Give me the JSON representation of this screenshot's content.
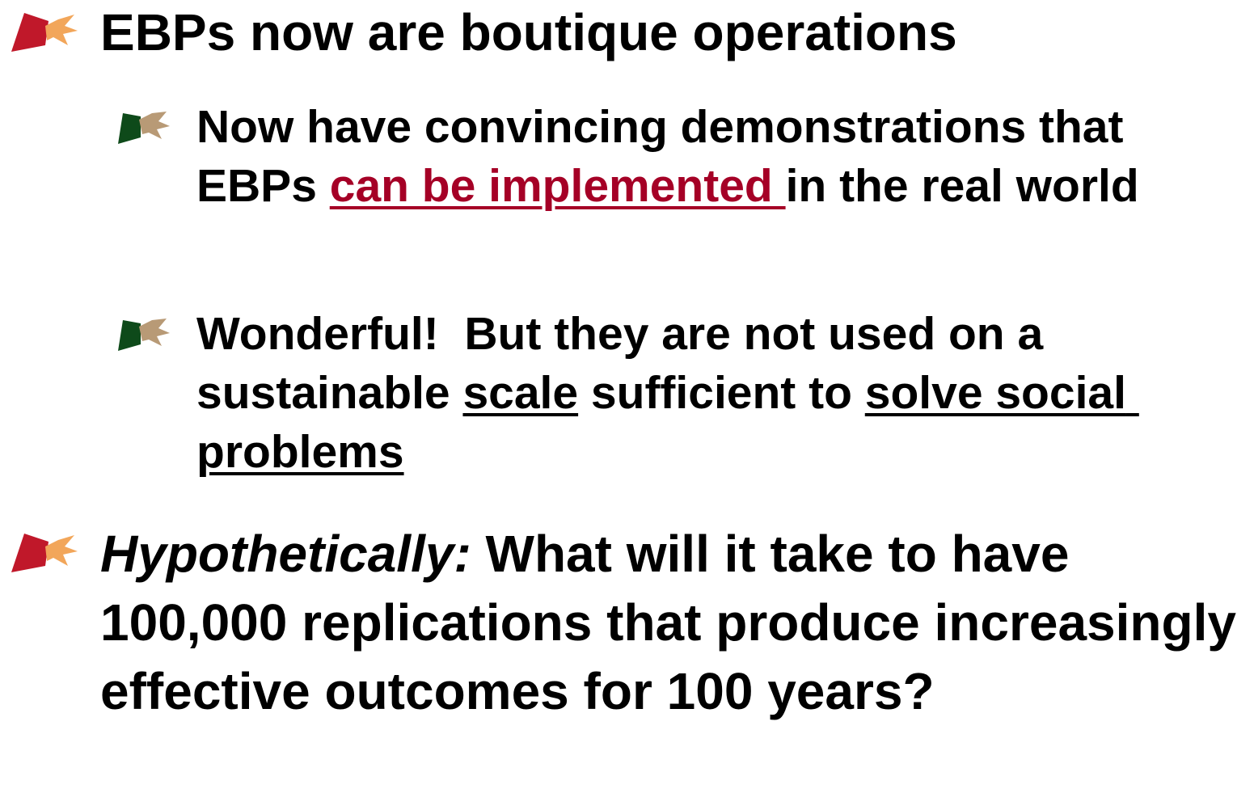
{
  "bullets": [
    {
      "segments": [
        {
          "text": "EBPs now are boutique operations"
        }
      ],
      "children": [
        {
          "segments": [
            {
              "text": "Now have convincing demonstrations that EBPs "
            },
            {
              "text": "can be implemented ",
              "underline": true,
              "color": "#a50026"
            },
            {
              "text": "in the real world"
            }
          ]
        },
        {
          "segments": [
            {
              "text": "Wonderful!  But they are not used on a sustainable "
            },
            {
              "text": "scale",
              "underline": true
            },
            {
              "text": " sufficient to "
            },
            {
              "text": "solve social problems",
              "underline": true
            }
          ]
        }
      ]
    },
    {
      "segments": [
        {
          "text": "Hypothetically:",
          "italic": true
        },
        {
          "text": " What will it take to have 100,000 replications that produce increasingly effective outcomes for 100 years?"
        }
      ]
    }
  ]
}
